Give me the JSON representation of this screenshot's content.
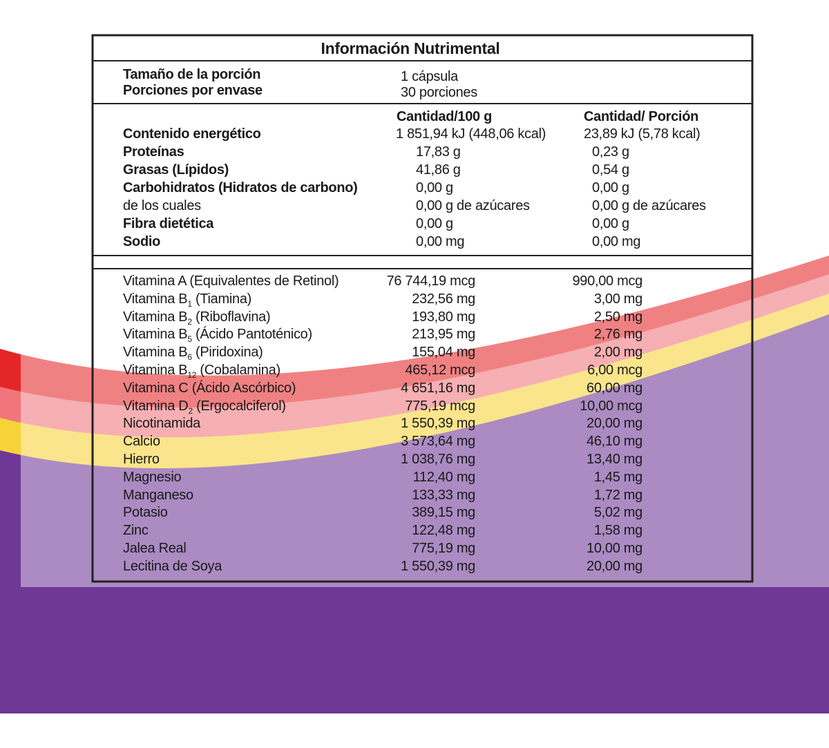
{
  "title": "Información Nutrimental",
  "serving": [
    {
      "label": "Tamaño de la porción",
      "value": "1 cápsula"
    },
    {
      "label": "Porciones por envase",
      "value": "30 porciones"
    }
  ],
  "columns": [
    "Cantidad/100 g",
    "Cantidad/ Porción"
  ],
  "nutrients": [
    {
      "name": "Contenido energético",
      "per_100g": "1 851,94 kJ (448,06 kcal)",
      "per_portion": "23,89 kJ (5,78 kcal)",
      "bold": true
    },
    {
      "name": "Proteínas",
      "per_100g": "17,83 g",
      "per_portion": "0,23 g",
      "bold": true
    },
    {
      "name": "Grasas (Lípidos)",
      "per_100g": "41,86 g",
      "per_portion": "0,54 g",
      "bold": true
    },
    {
      "name": "Carbohidratos (Hidratos de carbono)",
      "per_100g": "0,00 g",
      "per_portion": "0,00 g",
      "bold": true
    },
    {
      "name": "de los cuales",
      "per_100g": "0,00 g de azúcares",
      "per_portion": "0,00 g de azúcares",
      "bold": false
    },
    {
      "name": "Fibra dietética",
      "per_100g": "0,00 g",
      "per_portion": "0,00 g",
      "bold": true
    },
    {
      "name": "Sodio",
      "per_100g": "0,00 mg",
      "per_portion": "0,00 mg",
      "bold": true
    }
  ],
  "vitamins": [
    {
      "name": "Vitamina A (Equivalentes de Retinol)",
      "per_100g": "76 744,19 mcg",
      "per_portion": "990,00 mcg"
    },
    {
      "name": "Vitamina B",
      "sub": "1",
      "suffix": " (Tiamina)",
      "per_100g": "232,56 mg",
      "per_portion": "3,00 mg"
    },
    {
      "name": "Vitamina B",
      "sub": "2",
      "suffix": " (Riboflavina)",
      "per_100g": "193,80 mg",
      "per_portion": "2,50 mg"
    },
    {
      "name": "Vitamina B",
      "sub": "5",
      "suffix": " (Ácido Pantoténico)",
      "per_100g": "213,95 mg",
      "per_portion": "2,76 mg"
    },
    {
      "name": "Vitamina B",
      "sub": "6",
      "suffix": " (Piridoxina)",
      "per_100g": "155,04 mg",
      "per_portion": "2,00 mg"
    },
    {
      "name": "Vitamina B",
      "sub": "12",
      "suffix": " (Cobalamina)",
      "per_100g": "465,12 mcg",
      "per_portion": "6,00 mcg"
    },
    {
      "name": "Vitamina C (Ácido Ascórbico)",
      "per_100g": "4 651,16 mg",
      "per_portion": "60,00 mg"
    },
    {
      "name": "Vitamina D",
      "sub": "2",
      "suffix": " (Ergocalciferol)",
      "per_100g": "775,19 mcg",
      "per_portion": "10,00 mcg"
    },
    {
      "name": "Nicotinamida",
      "per_100g": "1 550,39 mg",
      "per_portion": "20,00 mg"
    },
    {
      "name": "Calcio",
      "per_100g": "3 573,64 mg",
      "per_portion": "46,10 mg"
    },
    {
      "name": "Hierro",
      "per_100g": "1 038,76 mg",
      "per_portion": "13,40 mg"
    },
    {
      "name": "Magnesio",
      "per_100g": "112,40 mg",
      "per_portion": "1,45 mg"
    },
    {
      "name": "Manganeso",
      "per_100g": "133,33 mg",
      "per_portion": "1,72 mg"
    },
    {
      "name": "Potasio",
      "per_100g": "389,15 mg",
      "per_portion": "5,02 mg"
    },
    {
      "name": "Zinc",
      "per_100g": "122,48 mg",
      "per_portion": "1,58 mg"
    },
    {
      "name": "Jalea Real",
      "per_100g": "775,19 mg",
      "per_portion": "10,00 mg"
    },
    {
      "name": "Lecitina de Soya",
      "per_100g": "1 550,39 mg",
      "per_portion": "20,00 mg"
    }
  ]
}
